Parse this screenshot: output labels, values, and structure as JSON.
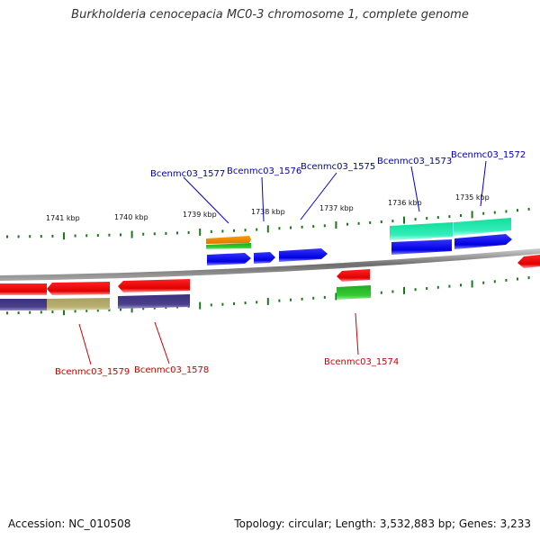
{
  "title": "Burkholderia cenocepacia MC0-3 chromosome 1, complete genome",
  "accession": "Accession: NC_010508",
  "summary": "Topology: circular; Length: 3,532,883 bp; Genes: 3,233",
  "scale_labels": [
    "1741 kbp",
    "1740 kbp",
    "1739 kbp",
    "1738 kbp",
    "1737 kbp",
    "1736 kbp",
    "1735 kbp"
  ],
  "gene_labels_top": [
    "Bcenmc03_1577",
    "Bcenmc03_1576",
    "Bcenmc03_1575",
    "Bcenmc03_1573",
    "Bcenmc03_1572"
  ],
  "gene_labels_bottom": [
    "Bcenmc03_1579",
    "Bcenmc03_1578",
    "Bcenmc03_1574"
  ],
  "colors": {
    "forward_label": "#0000aa",
    "reverse_label": "#cc0000",
    "cds_forward": "#0000ee",
    "cds_reverse": "#ee0000",
    "tick": "#1a7a1a",
    "backbone": "#8c8c8c",
    "teal": "#22ddaa",
    "purple": "#4a3f8a",
    "khaki": "#b8b070",
    "orange": "#ee8800",
    "green": "#33bb33"
  }
}
